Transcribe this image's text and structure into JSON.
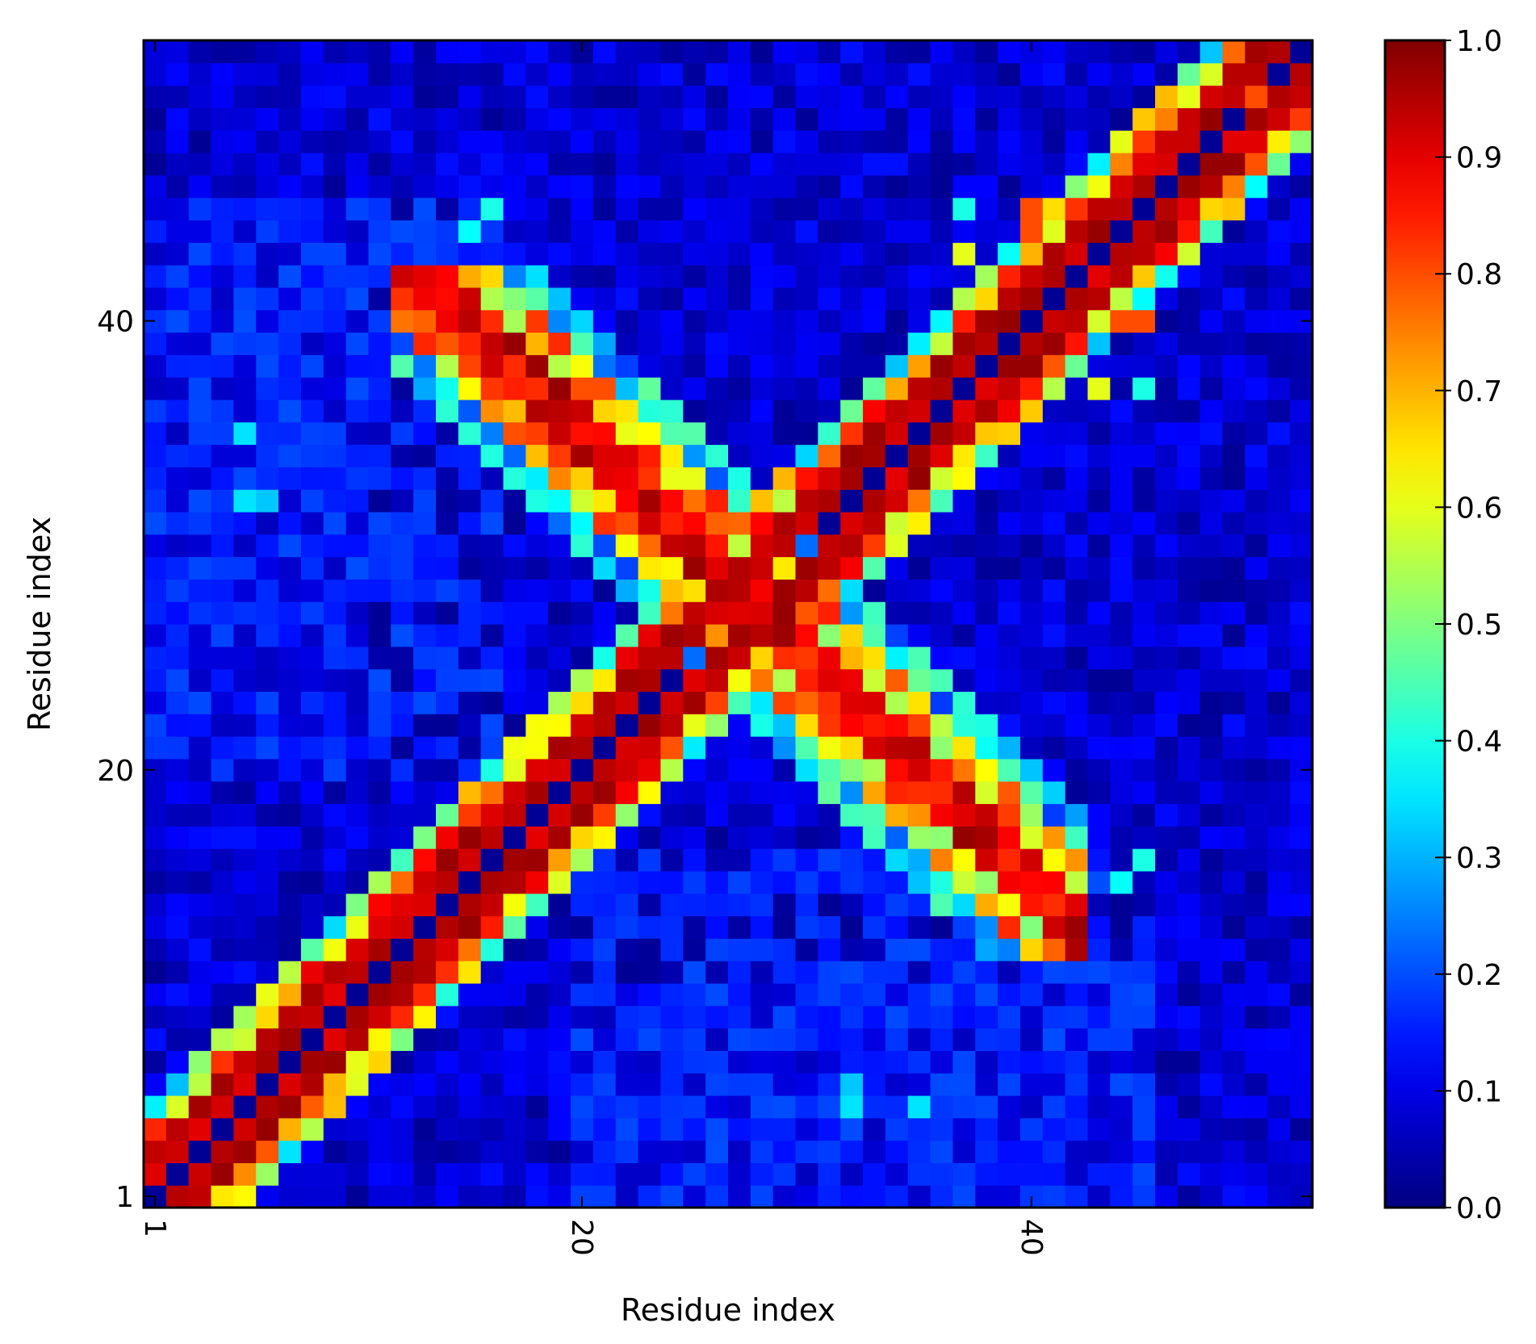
{
  "chart_data": {
    "type": "heatmap",
    "title": "",
    "xlabel": "Residue index",
    "ylabel": "Residue index",
    "n_residues": 52,
    "xlim": [
      0.5,
      52.5
    ],
    "ylim": [
      0.5,
      52.5
    ],
    "x_ticks": [
      {
        "value": 1,
        "label": "1"
      },
      {
        "value": 20,
        "label": "20"
      },
      {
        "value": 40,
        "label": "40"
      }
    ],
    "y_ticks": [
      {
        "value": 1,
        "label": "1"
      },
      {
        "value": 20,
        "label": "20"
      },
      {
        "value": 40,
        "label": "40"
      }
    ],
    "x_tick_rotation_deg": 90,
    "colormap": "jet",
    "value_range": [
      0.0,
      1.0
    ],
    "colorbar": {
      "ticks": [
        {
          "value": 0.0,
          "label": "0.0"
        },
        {
          "value": 0.1,
          "label": "0.1"
        },
        {
          "value": 0.2,
          "label": "0.2"
        },
        {
          "value": 0.3,
          "label": "0.3"
        },
        {
          "value": 0.4,
          "label": "0.4"
        },
        {
          "value": 0.5,
          "label": "0.5"
        },
        {
          "value": 0.6,
          "label": "0.6"
        },
        {
          "value": 0.7,
          "label": "0.7"
        },
        {
          "value": 0.8,
          "label": "0.8"
        },
        {
          "value": 0.9,
          "label": "0.9"
        },
        {
          "value": 1.0,
          "label": "1.0"
        }
      ]
    },
    "grid": false,
    "description_of_values": "Contact map: main diagonal near 1.0; anti-diagonal hairpin band from (14,20) through (27,27) to (35,20)",
    "hotspots": [
      {
        "x": 20,
        "y": 39,
        "value": 0.45
      },
      {
        "x": 18,
        "y": 37,
        "value": 0.5
      },
      {
        "x": 21,
        "y": 37,
        "value": 0.65
      },
      {
        "x": 16,
        "y": 45,
        "value": 0.4
      },
      {
        "x": 37,
        "y": 45,
        "value": 0.4
      },
      {
        "x": 37,
        "y": 41,
        "value": 0.55
      },
      {
        "x": 38,
        "y": 40,
        "value": 0.85
      },
      {
        "x": 37,
        "y": 40,
        "value": 0.85
      },
      {
        "x": 5,
        "y": 32,
        "value": 0.35
      },
      {
        "x": 6,
        "y": 32,
        "value": 0.32
      },
      {
        "x": 42,
        "y": 16,
        "value": 0.35
      },
      {
        "x": 44,
        "y": 15,
        "value": 0.38
      },
      {
        "x": 14,
        "y": 16,
        "value": 0.72
      },
      {
        "x": 13,
        "y": 16,
        "value": 0.85
      },
      {
        "x": 17,
        "y": 21,
        "value": 0.5
      },
      {
        "x": 43,
        "y": 37,
        "value": 0.6
      },
      {
        "x": 44,
        "y": 40,
        "value": 0.8
      },
      {
        "x": 45,
        "y": 40,
        "value": 0.8
      },
      {
        "x": 48,
        "y": 46,
        "value": 0.8
      },
      {
        "x": 49,
        "y": 46,
        "value": 0.75
      },
      {
        "x": 50,
        "y": 50,
        "value": 0.8
      },
      {
        "x": 4,
        "y": 7,
        "value": 0.5
      },
      {
        "x": 4,
        "y": 8,
        "value": 0.55
      },
      {
        "x": 6,
        "y": 4,
        "value": 0.65
      },
      {
        "x": 35,
        "y": 5,
        "value": 0.35
      }
    ]
  }
}
